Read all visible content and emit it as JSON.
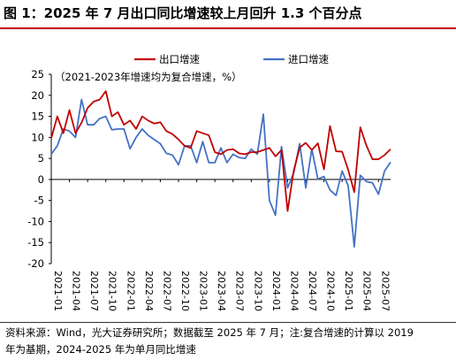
{
  "title": "图 1：2025 年 7 月出口同比增速较上月回升 1.3 个百分点",
  "footer": {
    "line1": "资料来源：Wind，光大证券研究所；数据截至 2025 年 7 月；注:复合增速的计算以 2019",
    "line2": "年为基期，2024-2025 年为单月同比增速"
  },
  "chart_data": {
    "type": "line",
    "title": "",
    "subtitle": "（2021-2023年增速均为复合增速，%）",
    "xlabel": "",
    "ylabel": "",
    "ylim": [
      -20,
      25
    ],
    "yticks": [
      25,
      20,
      15,
      10,
      5,
      0,
      -5,
      -10,
      -15,
      -20
    ],
    "x_start": "2021-01",
    "xticks": [
      "2021-01",
      "2021-04",
      "2021-07",
      "2021-10",
      "2022-01",
      "2022-04",
      "2022-07",
      "2022-10",
      "2023-01",
      "2023-04",
      "2023-07",
      "2023-10",
      "2024-01",
      "2024-04",
      "2024-07",
      "2024-10",
      "2025-01",
      "2025-04",
      "2025-07"
    ],
    "grid": false,
    "legend_position": "top",
    "series": [
      {
        "name": "出口增速",
        "color": "#c00000",
        "values": [
          9.8,
          15,
          11,
          16.5,
          11,
          13.5,
          17,
          18.5,
          19,
          21,
          15,
          16,
          13,
          14,
          12,
          15,
          14,
          13.3,
          13.6,
          11.5,
          10.8,
          9.5,
          8,
          7.5,
          11.5,
          11,
          10.5,
          6.5,
          6,
          7,
          7.2,
          6.2,
          6,
          6.5,
          6.5,
          7,
          7.5,
          5.5,
          7,
          -7.5,
          2,
          7.6,
          8.7,
          7,
          8.6,
          2.4,
          12.7,
          6.7,
          6.6,
          2.3,
          -3,
          12.4,
          8.1,
          4.8,
          4.8,
          5.8,
          7.2
        ]
      },
      {
        "name": "进口增速",
        "color": "#4472c4",
        "values": [
          6,
          8,
          12,
          11.5,
          10,
          19,
          13,
          13,
          14.5,
          15,
          11.8,
          12,
          12,
          7.3,
          10,
          12,
          10.5,
          9.5,
          8.5,
          6.2,
          5.8,
          3.5,
          8,
          8,
          4,
          9,
          4,
          4,
          7.5,
          4,
          6,
          5.2,
          5,
          7.2,
          6,
          15.5,
          -5,
          -8.5,
          7.8,
          -2,
          1.5,
          8.5,
          -2,
          7.2,
          0.1,
          0.7,
          -2.5,
          -3.8,
          2,
          -1.5,
          -16,
          1,
          -0.5,
          -0.8,
          -3.5,
          2,
          4.1
        ]
      }
    ]
  }
}
